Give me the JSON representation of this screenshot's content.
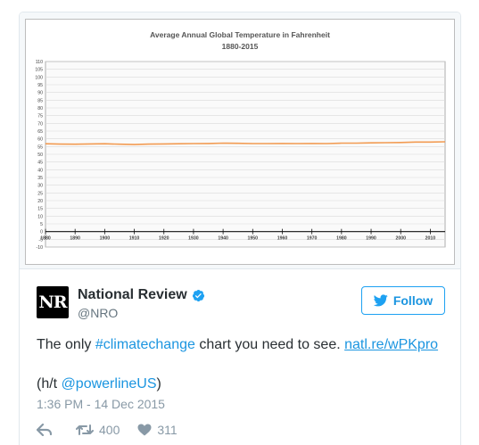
{
  "chart_data": {
    "type": "line",
    "title": "Average Annual Global Temperature in Fahrenheit",
    "subtitle": "1880-2015",
    "xlabel": "",
    "ylabel": "",
    "xlim": [
      1880,
      2015
    ],
    "ylim": [
      -10,
      110
    ],
    "x_ticks": [
      1880,
      1890,
      1900,
      1910,
      1920,
      1930,
      1940,
      1950,
      1960,
      1970,
      1980,
      1990,
      2000,
      2010
    ],
    "y_ticks": [
      -10,
      -5,
      0,
      5,
      10,
      15,
      20,
      25,
      30,
      35,
      40,
      45,
      50,
      55,
      60,
      65,
      70,
      75,
      80,
      85,
      90,
      95,
      100,
      105,
      110
    ],
    "grid": true,
    "line_color": "#f29b52",
    "series": [
      {
        "name": "",
        "x": [
          1880,
          1885,
          1890,
          1895,
          1900,
          1905,
          1910,
          1915,
          1920,
          1925,
          1930,
          1935,
          1940,
          1945,
          1950,
          1955,
          1960,
          1965,
          1970,
          1975,
          1980,
          1985,
          1990,
          1995,
          2000,
          2005,
          2010,
          2015
        ],
        "values": [
          56.8,
          56.6,
          56.5,
          56.7,
          56.8,
          56.5,
          56.3,
          56.6,
          56.7,
          56.8,
          56.9,
          57.0,
          57.2,
          57.1,
          56.9,
          56.9,
          57.0,
          56.9,
          57.0,
          56.9,
          57.2,
          57.2,
          57.4,
          57.5,
          57.6,
          57.9,
          57.9,
          58.1
        ]
      }
    ]
  },
  "tweet": {
    "avatar_text": "NR",
    "display_name": "National Review",
    "handle": "@NRO",
    "follow_label": "Follow",
    "text_before": "The only ",
    "hashtag": "#climatechange",
    "text_middle": " chart you need to see. ",
    "link": "natl.re/wPKpro",
    "credit_prefix": "(h/t ",
    "mention": "@powerlineUS",
    "credit_suffix": ")",
    "timestamp": "1:36 PM - 14 Dec 2015",
    "retweets": "400",
    "likes": "311"
  },
  "icons": {
    "verified": "verified-badge-icon",
    "bird": "twitter-bird-icon",
    "reply": "reply-icon",
    "retweet": "retweet-icon",
    "like": "heart-icon"
  },
  "colors": {
    "accent": "#1b95e0",
    "verified": "#1da1f2",
    "muted": "#8899a6"
  }
}
